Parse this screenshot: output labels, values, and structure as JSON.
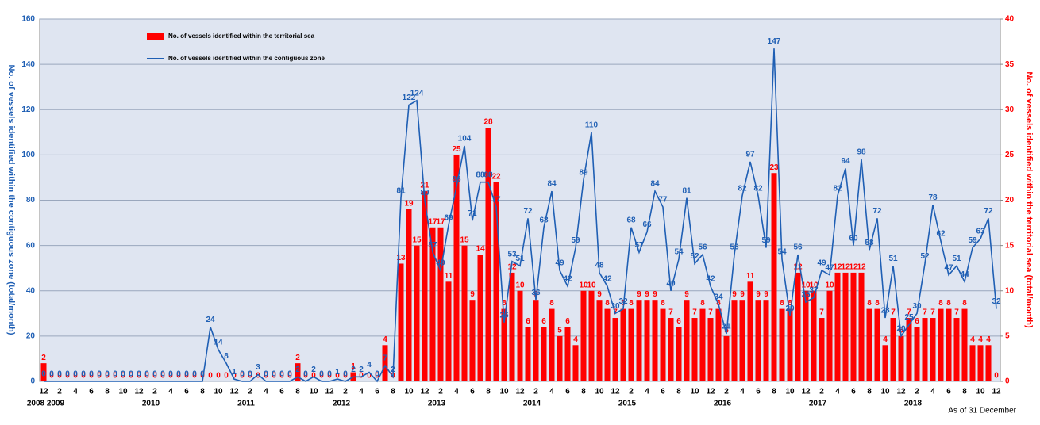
{
  "chart_data": {
    "type": "bar",
    "y_label": "No. of vessels identified within the contiguous zone (total/month)",
    "y2_label": "No. of vessels identified within the territorial sea (total/month)",
    "note": "As of  31 December",
    "categories": [
      "12",
      null,
      "2",
      null,
      "4",
      null,
      "6",
      null,
      "8",
      null,
      "10",
      null,
      "12",
      null,
      "2",
      null,
      "4",
      null,
      "6",
      null,
      "8",
      null,
      "10",
      null,
      "12",
      null,
      "2",
      null,
      "4",
      null,
      "6",
      null,
      "8",
      null,
      "10",
      null,
      "12",
      null,
      "2",
      null,
      "4",
      null,
      "6",
      null,
      "8",
      null,
      "10",
      null,
      "12",
      null,
      "2",
      null,
      "4",
      null,
      "6",
      null,
      "8",
      null,
      "10",
      null,
      "12",
      null,
      "2",
      null,
      "4",
      null,
      "6",
      null,
      "8",
      null,
      "10",
      null,
      "12",
      null,
      "2",
      null,
      "4",
      null,
      "6",
      null,
      "8",
      null,
      "10",
      null,
      "12",
      null,
      "2",
      null,
      "4",
      null,
      "6",
      null,
      "8",
      null,
      "10",
      null,
      "12",
      null,
      "2",
      null,
      "4",
      null,
      "6",
      null,
      "8",
      null,
      "10",
      null,
      "12",
      null,
      "2",
      null,
      "4",
      null,
      "6",
      null,
      "8",
      null,
      "10",
      null,
      "12"
    ],
    "years": [
      "2008",
      "2009",
      "2010",
      "2011",
      "2012",
      "2013",
      "2014",
      "2015",
      "2016",
      "2017",
      "2018"
    ],
    "series": [
      {
        "name": "No. of vessels identified within the territorial sea",
        "type": "bar",
        "axis": "y2",
        "color": "#ff0000",
        "values": [
          2,
          0,
          0,
          0,
          0,
          0,
          0,
          0,
          0,
          0,
          0,
          0,
          0,
          0,
          0,
          0,
          0,
          0,
          0,
          0,
          0,
          0,
          0,
          0,
          0,
          0,
          0,
          0,
          0,
          0,
          0,
          0,
          2,
          0,
          0,
          0,
          0,
          0,
          0,
          1,
          0,
          0,
          0,
          4,
          0,
          13,
          19,
          15,
          21,
          17,
          17,
          11,
          25,
          15,
          9,
          14,
          28,
          22,
          8,
          12,
          10,
          6,
          9,
          6,
          8,
          5,
          6,
          4,
          10,
          10,
          9,
          8,
          7,
          8,
          8,
          9,
          9,
          9,
          8,
          7,
          6,
          9,
          7,
          8,
          7,
          8,
          5,
          9,
          9,
          11,
          9,
          9,
          23,
          8,
          8,
          12,
          10,
          10,
          7,
          10,
          12,
          12,
          12,
          12,
          8,
          8,
          4,
          7,
          5,
          7,
          6,
          7,
          7,
          8,
          8,
          7,
          8,
          4,
          4,
          4,
          0
        ]
      },
      {
        "name": "No. of vessels identified within the contiguous zone",
        "type": "line",
        "color": "#1f5fb4",
        "values": [
          0,
          0,
          0,
          0,
          0,
          0,
          0,
          0,
          0,
          0,
          0,
          0,
          0,
          0,
          0,
          0,
          0,
          0,
          0,
          0,
          0,
          24,
          14,
          8,
          1,
          0,
          0,
          3,
          0,
          0,
          0,
          0,
          2,
          0,
          2,
          0,
          0,
          1,
          0,
          2,
          2,
          4,
          0,
          7,
          2,
          81,
          122,
          124,
          80,
          57,
          49,
          69,
          86,
          104,
          71,
          88,
          88,
          77,
          26,
          53,
          51,
          72,
          36,
          68,
          84,
          49,
          42,
          59,
          89,
          110,
          48,
          42,
          30,
          32,
          68,
          57,
          66,
          84,
          77,
          40,
          54,
          81,
          52,
          56,
          42,
          34,
          21,
          56,
          82,
          97,
          82,
          59,
          147,
          54,
          29,
          56,
          35,
          37,
          49,
          47,
          82,
          94,
          60,
          98,
          58,
          72,
          28,
          51,
          20,
          25,
          30,
          52,
          78,
          62,
          47,
          51,
          44,
          59,
          63,
          72,
          32
        ]
      }
    ],
    "ylim": [
      0,
      160
    ],
    "yticks": [
      0,
      20,
      40,
      60,
      80,
      100,
      120,
      140,
      160
    ],
    "y2lim": [
      0,
      40
    ],
    "y2ticks": [
      0,
      5,
      10,
      15,
      20,
      25,
      30,
      35,
      40
    ],
    "grid": true,
    "legend": "upper left"
  }
}
